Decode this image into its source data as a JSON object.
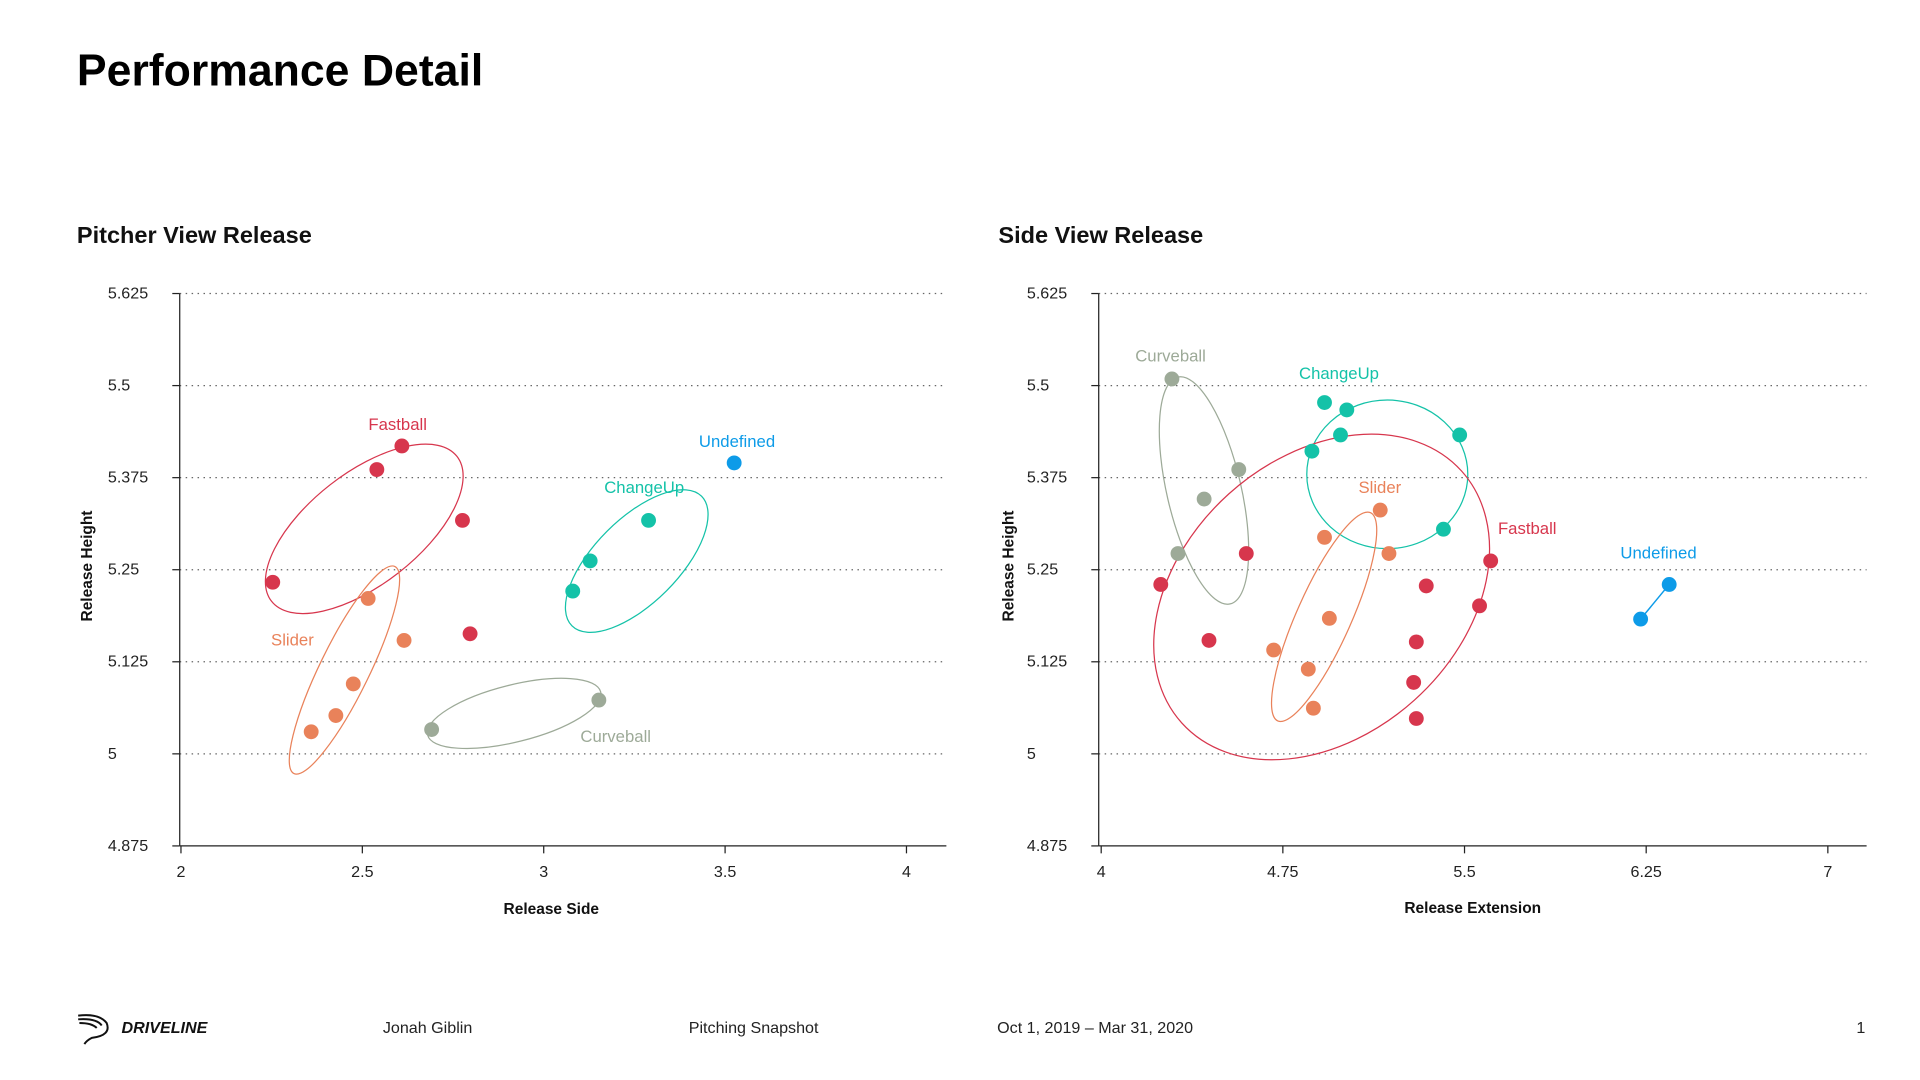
{
  "page": {
    "title": "Performance Detail"
  },
  "colors": {
    "Fastball": "#d7364d",
    "Slider": "#e9825a",
    "ChangeUp": "#14c2a8",
    "Curveball": "#9daa98",
    "Undefined": "#0d9be8"
  },
  "chart_data": [
    {
      "type": "scatter",
      "title": "Pitcher View Release",
      "xlabel": "Release Side",
      "ylabel": "Release Height",
      "xlim": [
        2,
        4.11
      ],
      "ylim": [
        4.875,
        5.625
      ],
      "xticks": [
        "2",
        "2.5",
        "3",
        "3.5",
        "4"
      ],
      "yticks": [
        "4.875",
        "5",
        "5.125",
        "5.25",
        "5.375",
        "5.5",
        "5.625"
      ],
      "grid": "horizontal dotted",
      "series": [
        {
          "name": "Fastball",
          "x": [
            2.609,
            2.54,
            2.776,
            2.253,
            2.797
          ],
          "y": [
            5.418,
            5.386,
            5.317,
            5.233,
            5.163
          ]
        },
        {
          "name": "Slider",
          "x": [
            2.516,
            2.615,
            2.475,
            2.427,
            2.359
          ],
          "y": [
            5.211,
            5.154,
            5.095,
            5.052,
            5.03
          ]
        },
        {
          "name": "ChangeUp",
          "x": [
            3.289,
            3.128,
            3.08
          ],
          "y": [
            5.317,
            5.262,
            5.221
          ]
        },
        {
          "name": "Curveball",
          "x": [
            3.152,
            2.691
          ],
          "y": [
            5.073,
            5.033
          ]
        },
        {
          "name": "Undefined",
          "x": [
            3.525
          ],
          "y": [
            5.395
          ]
        }
      ]
    },
    {
      "type": "scatter",
      "title": "Side View Release",
      "xlabel": "Release Extension",
      "ylabel": "Release Height",
      "xlim": [
        4,
        7.16
      ],
      "ylim": [
        4.875,
        5.625
      ],
      "xticks": [
        "4",
        "4.75",
        "5.5",
        "6.25",
        "7"
      ],
      "yticks": [
        "4.875",
        "5",
        "5.125",
        "5.25",
        "5.375",
        "5.5",
        "5.625"
      ],
      "grid": "horizontal dotted",
      "series": [
        {
          "name": "Curveball",
          "x": [
            4.292,
            4.568,
            4.425,
            4.317
          ],
          "y": [
            5.509,
            5.386,
            5.346,
            5.272
          ]
        },
        {
          "name": "ChangeUp",
          "x": [
            4.922,
            5.014,
            4.988,
            5.48,
            4.87,
            5.413
          ],
          "y": [
            5.477,
            5.467,
            5.433,
            5.433,
            5.411,
            5.305
          ]
        },
        {
          "name": "Slider",
          "x": [
            5.152,
            4.922,
            5.188,
            4.942,
            4.712,
            4.855,
            4.876
          ],
          "y": [
            5.331,
            5.294,
            5.272,
            5.184,
            5.141,
            5.115,
            5.062
          ]
        },
        {
          "name": "Fastball",
          "x": [
            4.599,
            4.246,
            5.342,
            5.608,
            5.562,
            4.445,
            5.301,
            5.29,
            5.301
          ],
          "y": [
            5.272,
            5.23,
            5.228,
            5.262,
            5.201,
            5.154,
            5.152,
            5.097,
            5.048
          ]
        },
        {
          "name": "Undefined",
          "x": [
            6.345,
            6.227
          ],
          "y": [
            5.23,
            5.183
          ]
        }
      ]
    }
  ],
  "footer": {
    "logo": "DRIVELINE",
    "player": "Jonah Giblin",
    "report": "Pitching Snapshot",
    "date_range": "Oct 1, 2019 – Mar 31, 2020",
    "page_number": "1"
  }
}
